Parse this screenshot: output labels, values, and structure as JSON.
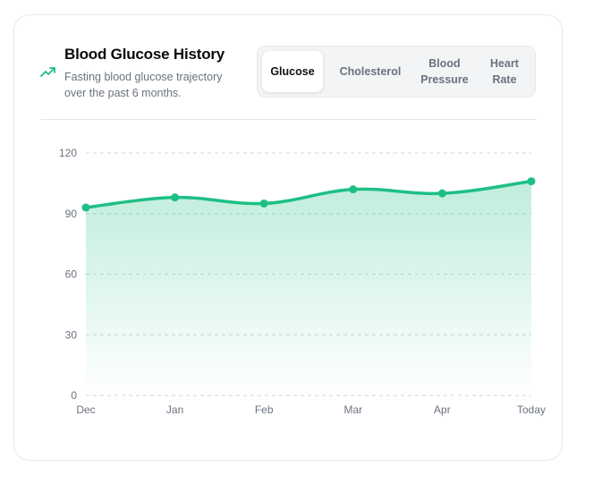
{
  "header": {
    "title": "Blood Glucose History",
    "subtitle": "Fasting blood glucose trajectory over the past 6 months.",
    "icon": "trending-up-icon"
  },
  "tabs": [
    {
      "label": "Glucose",
      "active": true
    },
    {
      "label": "Cholesterol",
      "active": false
    },
    {
      "label": "Blood Pressure",
      "active": false
    },
    {
      "label": "Heart Rate",
      "active": false
    }
  ],
  "colors": {
    "accent": "#1dbf84",
    "grid": "#d1d5db"
  },
  "chart_data": {
    "type": "area",
    "categories": [
      "Dec",
      "Jan",
      "Feb",
      "Mar",
      "Apr",
      "Today"
    ],
    "series": [
      {
        "values": [
          93,
          98,
          95,
          102,
          100,
          106
        ]
      }
    ],
    "yticks": [
      0,
      30,
      60,
      90,
      120
    ],
    "ylim": [
      0,
      120
    ],
    "grid": true,
    "title": "",
    "xlabel": "",
    "ylabel": ""
  }
}
